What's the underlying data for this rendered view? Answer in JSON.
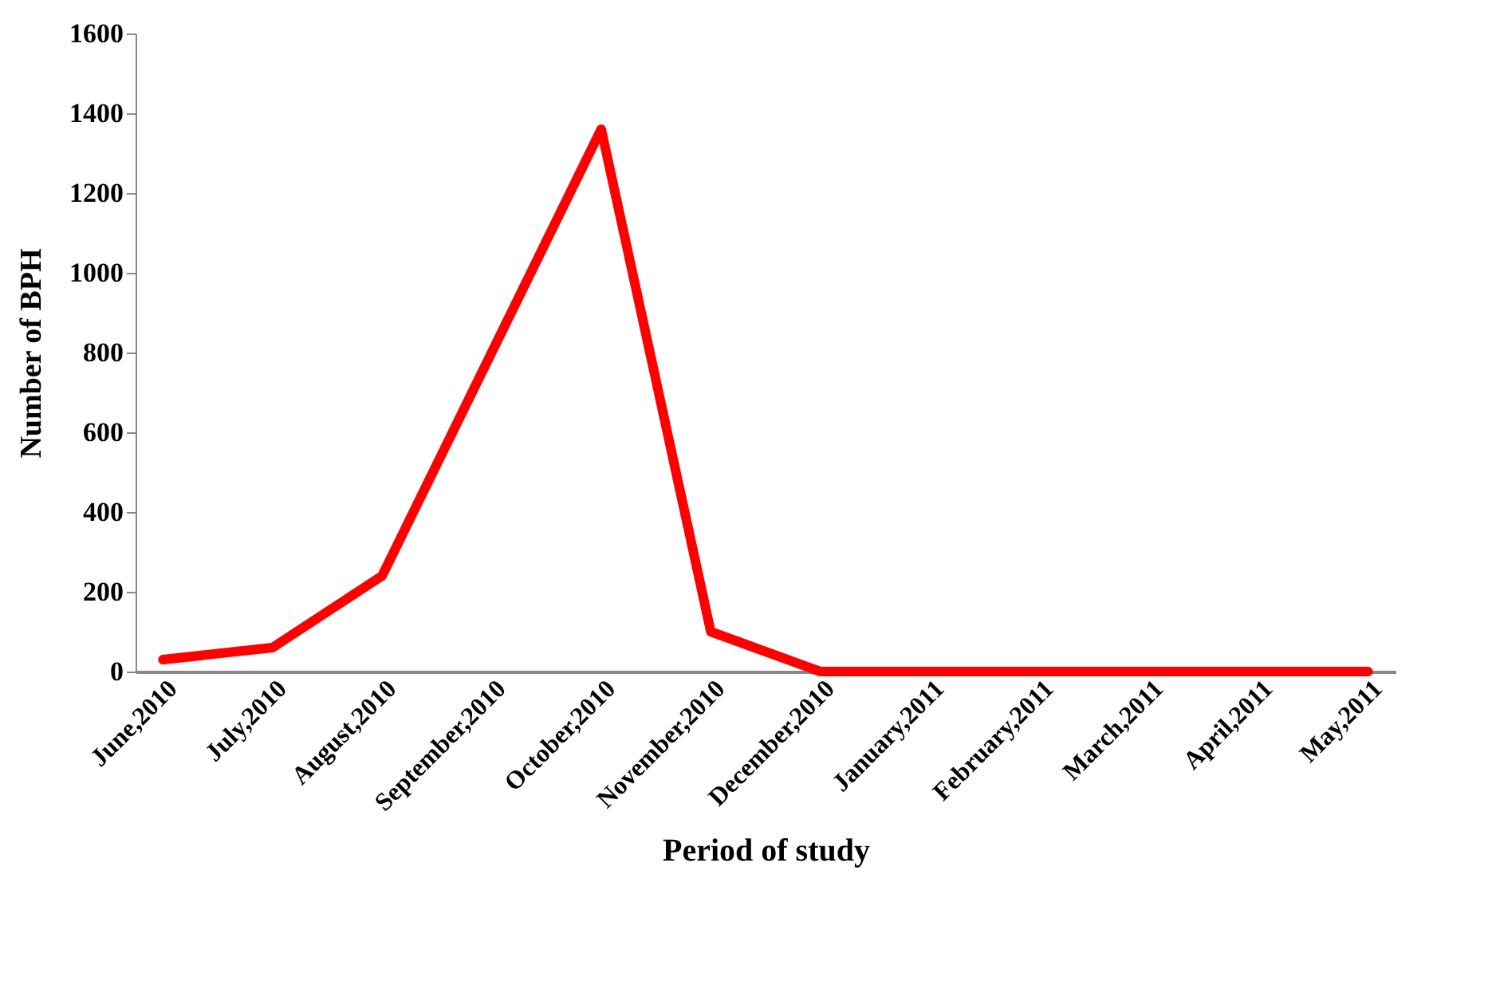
{
  "chart_data": {
    "type": "line",
    "xlabel": "Period of study",
    "ylabel": "Number of BPH",
    "categories": [
      "June,2010",
      "July,2010",
      "August,2010",
      "September,2010",
      "October,2010",
      "November,2010",
      "December,2010",
      "January,2011",
      "February,2011",
      "March,2011",
      "April,2011",
      "May,2011"
    ],
    "series": [
      {
        "color": "#ff0000",
        "values": [
          30,
          60,
          240,
          800,
          1360,
          100,
          0,
          0,
          0,
          0,
          0,
          0
        ]
      }
    ],
    "ylim": [
      0,
      1600
    ],
    "yticks": [
      0,
      200,
      400,
      600,
      800,
      1000,
      1200,
      1400,
      1600
    ],
    "grid": false,
    "legend": false,
    "marker": "none",
    "line_style": "solid"
  }
}
